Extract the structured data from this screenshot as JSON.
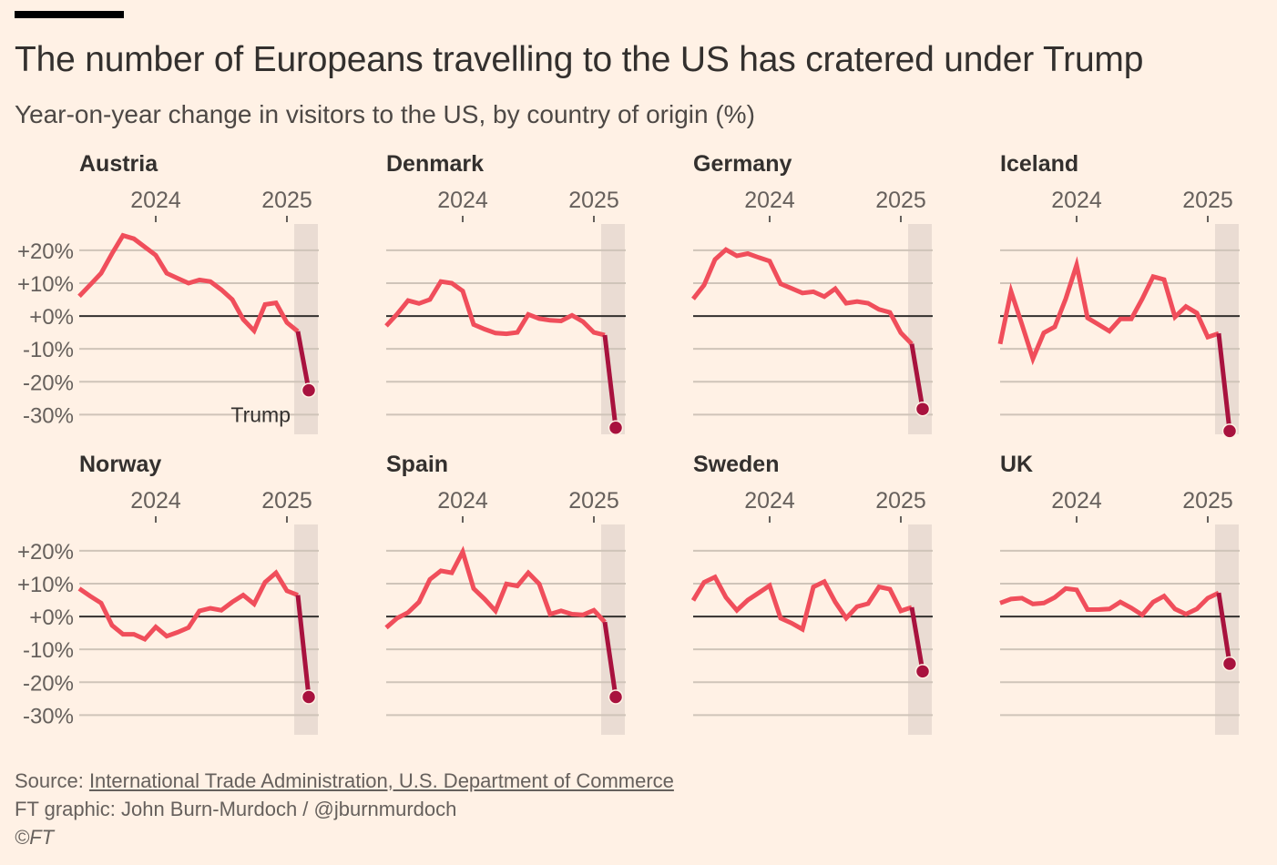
{
  "header": {
    "title": "The number of Europeans travelling to the US has cratered under Trump",
    "subtitle": "Year-on-year change in visitors to the US, by country of origin (%)"
  },
  "footer": {
    "source_prefix": "Source: ",
    "source_link": "International Trade Administration, U.S. Department of Commerce",
    "credit": "FT graphic: John Burn-Murdoch / @jburnmurdoch",
    "copyright": "©FT"
  },
  "colors": {
    "background": "#fff1e5",
    "line": "#f04e5b",
    "trump_line": "#a8123e",
    "trump_shade": "#eadcd3",
    "grid": "#cfc4b9",
    "zero_line": "#33302e",
    "text": "#33302e",
    "axis_text": "#66605c"
  },
  "chart_data": {
    "type": "line",
    "title": "The number of Europeans travelling to the US has cratered under Trump",
    "subtitle": "Year-on-year change in visitors to the US, by country of origin (%)",
    "xlabel": "",
    "ylabel": "",
    "x": [
      "2023-06",
      "2023-07",
      "2023-08",
      "2023-09",
      "2023-10",
      "2023-11",
      "2023-12",
      "2024-01",
      "2024-02",
      "2024-03",
      "2024-04",
      "2024-05",
      "2024-06",
      "2024-07",
      "2024-08",
      "2024-09",
      "2024-10",
      "2024-11",
      "2024-12",
      "2025-01",
      "2025-02",
      "2025-03"
    ],
    "x_ticks": [
      {
        "label": "2024",
        "x": "2024-01"
      },
      {
        "label": "2025",
        "x": "2025-01"
      }
    ],
    "y_ticks": [
      20,
      10,
      0,
      -10,
      -20,
      -30
    ],
    "y_tick_labels": [
      "+20%",
      "+10%",
      "+0%",
      "-10%",
      "-20%",
      "-30%"
    ],
    "ylim": [
      -36,
      28
    ],
    "grid": true,
    "highlight": {
      "label": "Trump",
      "from": "2025-02",
      "to": "2025-03",
      "annotated_panel": "Austria"
    },
    "layout": "2 rows x 4 columns small multiples",
    "panels": [
      {
        "name": "Austria",
        "values": [
          6,
          9.5,
          13,
          19,
          24.5,
          23.5,
          21,
          18.5,
          13,
          11.5,
          10,
          11,
          10.5,
          8,
          5,
          -1,
          -4.5,
          3.5,
          4,
          -2,
          -4.7,
          -22.6
        ]
      },
      {
        "name": "Denmark",
        "values": [
          -3,
          0.6,
          4.7,
          3.8,
          5,
          10.5,
          10,
          7.6,
          -2.6,
          -4,
          -5.2,
          -5.4,
          -5,
          0.5,
          -0.8,
          -1.3,
          -1.5,
          0.2,
          -1.7,
          -5,
          -5.8,
          -34
        ]
      },
      {
        "name": "Germany",
        "values": [
          5.2,
          9.4,
          17.2,
          20.2,
          18.3,
          19,
          17.8,
          16.7,
          9.8,
          8.4,
          7,
          7.4,
          5.9,
          8.3,
          3.9,
          4.4,
          3.9,
          2,
          1.1,
          -5.1,
          -8.5,
          -28.3
        ]
      },
      {
        "name": "Iceland",
        "values": [
          -8.5,
          7.5,
          -2.6,
          -13,
          -5.1,
          -3.3,
          5.2,
          15.5,
          -0.6,
          -2.6,
          -4.6,
          -0.9,
          -0.9,
          5.2,
          12,
          11.1,
          -0.3,
          2.9,
          0.9,
          -6.4,
          -5.3,
          -35
        ]
      },
      {
        "name": "Norway",
        "values": [
          8.5,
          6.2,
          4.1,
          -2.7,
          -5.4,
          -5.4,
          -6.9,
          -3.2,
          -6,
          -4.8,
          -3.4,
          1.7,
          2.5,
          1.9,
          4.4,
          6.5,
          3.8,
          10.4,
          13.3,
          7.8,
          6.5,
          -24.5
        ]
      },
      {
        "name": "Spain",
        "values": [
          -3.4,
          -0.5,
          1.2,
          4.4,
          11.3,
          13.9,
          13.3,
          19.7,
          8.5,
          5.3,
          1.7,
          9.9,
          9.3,
          13.3,
          9.9,
          0.7,
          1.7,
          0.7,
          0.5,
          1.9,
          -1.7,
          -24.5
        ]
      },
      {
        "name": "Sweden",
        "values": [
          4.9,
          10.4,
          12,
          5.8,
          1.9,
          5,
          7.2,
          9.4,
          -0.5,
          -2,
          -3.9,
          9,
          10.6,
          4.4,
          -0.5,
          3,
          3.9,
          9,
          8.3,
          1.7,
          2.8,
          -16.7
        ]
      },
      {
        "name": "UK",
        "values": [
          4.1,
          5.3,
          5.6,
          3.8,
          4.1,
          5.8,
          8.5,
          8.1,
          2.1,
          2.1,
          2.3,
          4.4,
          2.6,
          0.5,
          4.4,
          6.2,
          2.3,
          0.7,
          2.3,
          5.6,
          7.2,
          -14.4
        ]
      }
    ]
  }
}
